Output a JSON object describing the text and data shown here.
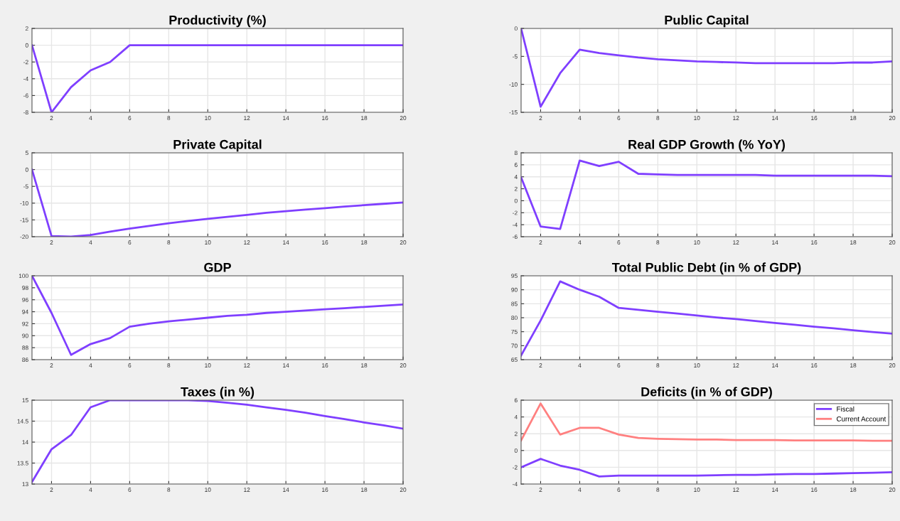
{
  "chart_data": [
    {
      "type": "line",
      "title": "Productivity (%)",
      "x": [
        1,
        2,
        3,
        4,
        5,
        6,
        7,
        8,
        9,
        10,
        11,
        12,
        13,
        14,
        15,
        16,
        17,
        18,
        19,
        20
      ],
      "xlim": [
        1,
        20
      ],
      "xticks": [
        2,
        4,
        6,
        8,
        10,
        12,
        14,
        16,
        18,
        20
      ],
      "ylim": [
        -8,
        2
      ],
      "yticks": [
        -8,
        -6,
        -4,
        -2,
        0,
        2
      ],
      "grid": true,
      "series": [
        {
          "color": "#7f3fff",
          "values": [
            0,
            -8,
            -5,
            -3,
            -2,
            0,
            0,
            0,
            0,
            0,
            0,
            0,
            0,
            0,
            0,
            0,
            0,
            0,
            0,
            0
          ]
        }
      ]
    },
    {
      "type": "line",
      "title": "Public Capital",
      "x": [
        1,
        2,
        3,
        4,
        5,
        6,
        7,
        8,
        9,
        10,
        11,
        12,
        13,
        14,
        15,
        16,
        17,
        18,
        19,
        20
      ],
      "xlim": [
        1,
        20
      ],
      "xticks": [
        2,
        4,
        6,
        8,
        10,
        12,
        14,
        16,
        18,
        20
      ],
      "ylim": [
        -15,
        0
      ],
      "yticks": [
        -15,
        -10,
        -5,
        0
      ],
      "grid": true,
      "series": [
        {
          "color": "#7f3fff",
          "values": [
            0,
            -14,
            -8,
            -3.8,
            -4.4,
            -4.8,
            -5.2,
            -5.5,
            -5.7,
            -5.9,
            -6.0,
            -6.1,
            -6.2,
            -6.2,
            -6.2,
            -6.2,
            -6.2,
            -6.1,
            -6.1,
            -5.9
          ]
        }
      ]
    },
    {
      "type": "line",
      "title": "Private Capital",
      "x": [
        1,
        2,
        3,
        4,
        5,
        6,
        7,
        8,
        9,
        10,
        11,
        12,
        13,
        14,
        15,
        16,
        17,
        18,
        19,
        20
      ],
      "xlim": [
        1,
        20
      ],
      "xticks": [
        2,
        4,
        6,
        8,
        10,
        12,
        14,
        16,
        18,
        20
      ],
      "ylim": [
        -20,
        5
      ],
      "yticks": [
        -20,
        -15,
        -10,
        -5,
        0,
        5
      ],
      "grid": true,
      "series": [
        {
          "color": "#7f3fff",
          "values": [
            0,
            -19.8,
            -20,
            -19.5,
            -18.5,
            -17.6,
            -16.8,
            -16.0,
            -15.3,
            -14.7,
            -14.1,
            -13.5,
            -12.9,
            -12.4,
            -11.9,
            -11.5,
            -11.0,
            -10.6,
            -10.2,
            -9.8
          ]
        }
      ]
    },
    {
      "type": "line",
      "title": "Real GDP Growth (% YoY)",
      "x": [
        1,
        2,
        3,
        4,
        5,
        6,
        7,
        8,
        9,
        10,
        11,
        12,
        13,
        14,
        15,
        16,
        17,
        18,
        19,
        20
      ],
      "xlim": [
        1,
        20
      ],
      "xticks": [
        2,
        4,
        6,
        8,
        10,
        12,
        14,
        16,
        18,
        20
      ],
      "ylim": [
        -6,
        8
      ],
      "yticks": [
        -6,
        -4,
        -2,
        0,
        2,
        4,
        6,
        8
      ],
      "grid": true,
      "series": [
        {
          "color": "#7f3fff",
          "values": [
            3.9,
            -4.3,
            -4.7,
            6.7,
            5.8,
            6.5,
            4.5,
            4.4,
            4.3,
            4.3,
            4.3,
            4.3,
            4.3,
            4.2,
            4.2,
            4.2,
            4.2,
            4.2,
            4.2,
            4.1
          ]
        }
      ]
    },
    {
      "type": "line",
      "title": "GDP",
      "x": [
        1,
        2,
        3,
        4,
        5,
        6,
        7,
        8,
        9,
        10,
        11,
        12,
        13,
        14,
        15,
        16,
        17,
        18,
        19,
        20
      ],
      "xlim": [
        1,
        20
      ],
      "xticks": [
        2,
        4,
        6,
        8,
        10,
        12,
        14,
        16,
        18,
        20
      ],
      "ylim": [
        86,
        100
      ],
      "yticks": [
        86,
        88,
        90,
        92,
        94,
        96,
        98,
        100
      ],
      "grid": true,
      "series": [
        {
          "color": "#7f3fff",
          "values": [
            100,
            93.8,
            86.8,
            88.6,
            89.6,
            91.5,
            92.0,
            92.4,
            92.7,
            93.0,
            93.3,
            93.5,
            93.8,
            94.0,
            94.2,
            94.4,
            94.6,
            94.8,
            95.0,
            95.2
          ]
        }
      ]
    },
    {
      "type": "line",
      "title": "Total Public Debt (in % of GDP)",
      "x": [
        1,
        2,
        3,
        4,
        5,
        6,
        7,
        8,
        9,
        10,
        11,
        12,
        13,
        14,
        15,
        16,
        17,
        18,
        19,
        20
      ],
      "xlim": [
        1,
        20
      ],
      "xticks": [
        2,
        4,
        6,
        8,
        10,
        12,
        14,
        16,
        18,
        20
      ],
      "ylim": [
        65,
        95
      ],
      "yticks": [
        65,
        70,
        75,
        80,
        85,
        90,
        95
      ],
      "grid": true,
      "series": [
        {
          "color": "#7f3fff",
          "values": [
            66.5,
            79,
            93,
            90,
            87.5,
            83.5,
            82.8,
            82.1,
            81.5,
            80.8,
            80.1,
            79.5,
            78.8,
            78.1,
            77.5,
            76.8,
            76.2,
            75.5,
            74.9,
            74.3
          ]
        }
      ]
    },
    {
      "type": "line",
      "title": "Taxes (in %)",
      "x": [
        1,
        2,
        3,
        4,
        5,
        6,
        7,
        8,
        9,
        10,
        11,
        12,
        13,
        14,
        15,
        16,
        17,
        18,
        19,
        20
      ],
      "xlim": [
        1,
        20
      ],
      "xticks": [
        2,
        4,
        6,
        8,
        10,
        12,
        14,
        16,
        18,
        20
      ],
      "ylim": [
        13,
        15
      ],
      "yticks": [
        13,
        13.5,
        14,
        14.5,
        15
      ],
      "grid": true,
      "series": [
        {
          "color": "#7f3fff",
          "values": [
            13.05,
            13.83,
            14.17,
            14.83,
            15,
            15,
            15,
            15,
            15,
            14.98,
            14.94,
            14.89,
            14.83,
            14.77,
            14.7,
            14.62,
            14.55,
            14.47,
            14.4,
            14.32
          ]
        }
      ]
    },
    {
      "type": "line",
      "title": "Deficits (in % of GDP)",
      "x": [
        1,
        2,
        3,
        4,
        5,
        6,
        7,
        8,
        9,
        10,
        11,
        12,
        13,
        14,
        15,
        16,
        17,
        18,
        19,
        20
      ],
      "xlim": [
        1,
        20
      ],
      "xticks": [
        2,
        4,
        6,
        8,
        10,
        12,
        14,
        16,
        18,
        20
      ],
      "ylim": [
        -4,
        6
      ],
      "yticks": [
        -4,
        -2,
        0,
        2,
        4,
        6
      ],
      "grid": true,
      "legend": "top right",
      "series": [
        {
          "name": "Fiscal",
          "color": "#7f3fff",
          "values": [
            -2,
            -1,
            -1.8,
            -2.3,
            -3.1,
            -3,
            -3,
            -3,
            -3,
            -3,
            -2.95,
            -2.9,
            -2.9,
            -2.85,
            -2.8,
            -2.8,
            -2.75,
            -2.7,
            -2.65,
            -2.6
          ]
        },
        {
          "name": "Current Account",
          "color": "#ff8080",
          "values": [
            1.2,
            5.6,
            1.9,
            2.7,
            2.7,
            1.9,
            1.5,
            1.4,
            1.35,
            1.3,
            1.3,
            1.25,
            1.25,
            1.25,
            1.2,
            1.2,
            1.2,
            1.2,
            1.15,
            1.15
          ]
        }
      ]
    }
  ]
}
